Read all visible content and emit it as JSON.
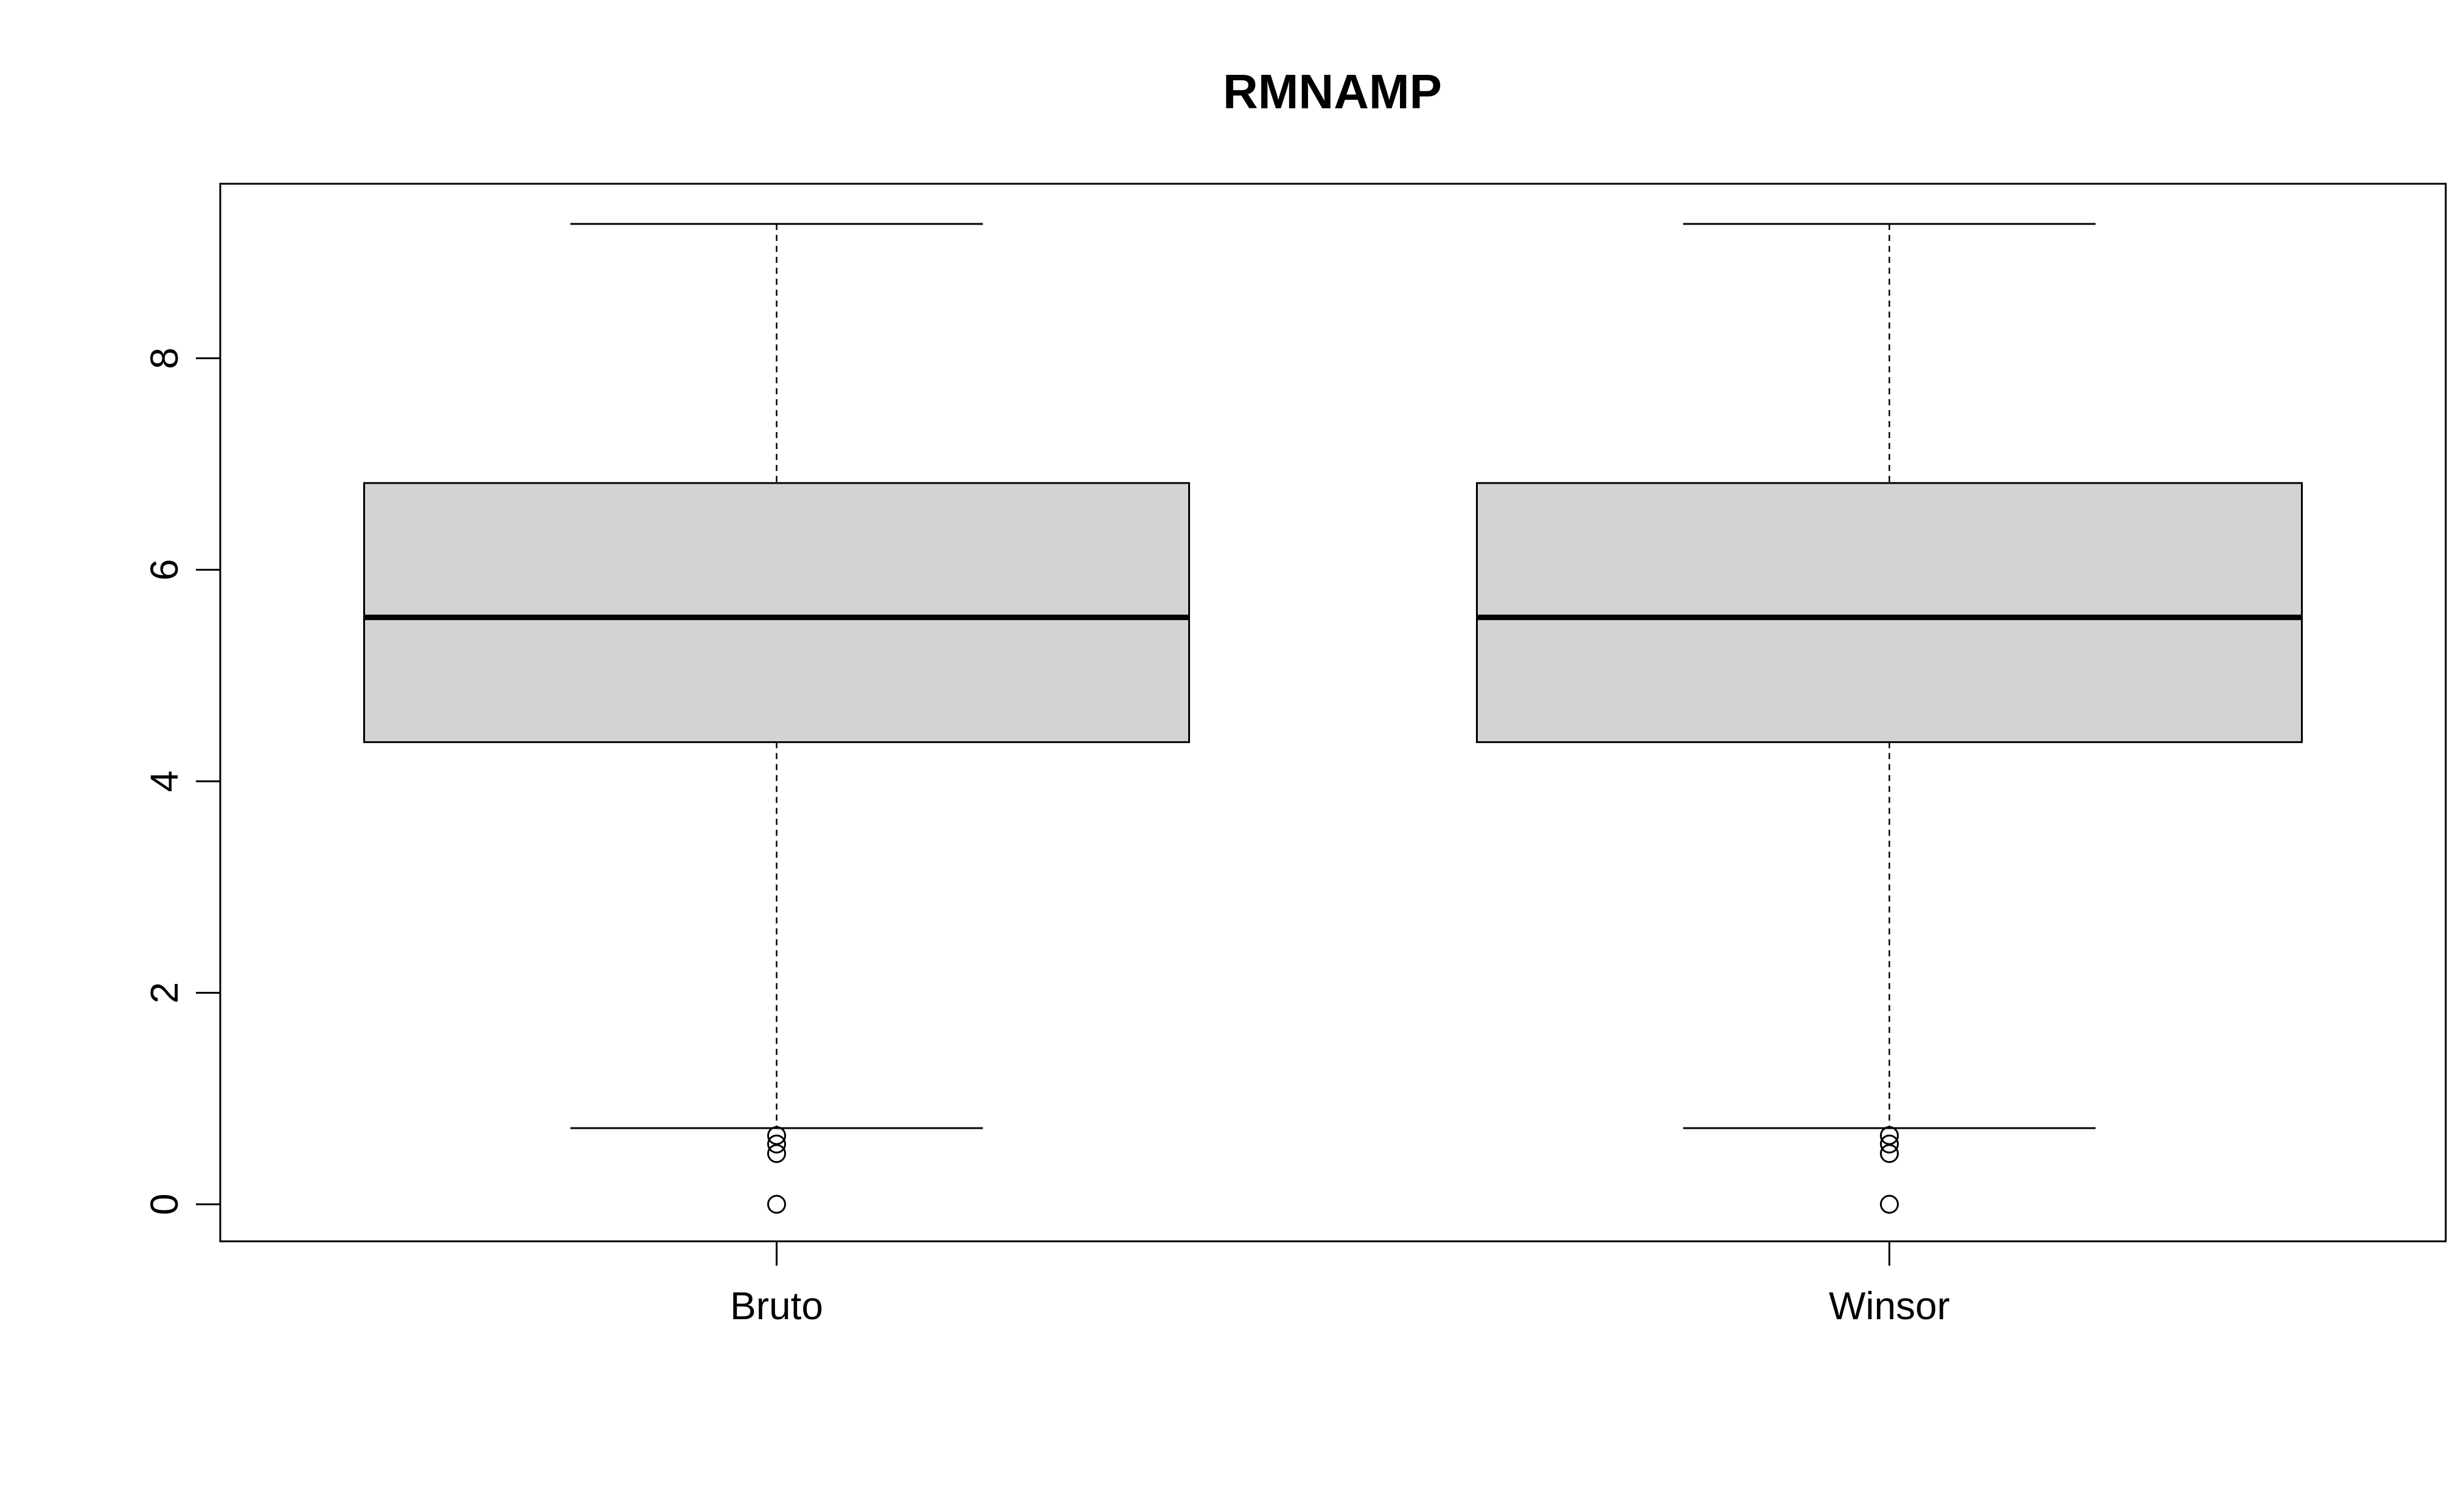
{
  "chart_data": {
    "type": "boxplot",
    "title": "RMNAMP",
    "xlabel": "",
    "ylabel": "",
    "categories": [
      "Bruto",
      "Winsor"
    ],
    "ylim": [
      -0.35,
      9.65
    ],
    "yticks": [
      0,
      2,
      4,
      6,
      8
    ],
    "grid": false,
    "legend": "none",
    "colors": {
      "box_fill": "#d3d3d3",
      "stroke": "#000000",
      "background": "#ffffff"
    },
    "boxes": [
      {
        "category": "Bruto",
        "whisker_low": 0.72,
        "q1": 4.37,
        "median": 5.55,
        "q3": 6.82,
        "whisker_high": 9.27,
        "outliers": [
          0.0,
          0.48,
          0.57,
          0.65
        ]
      },
      {
        "category": "Winsor",
        "whisker_low": 0.72,
        "q1": 4.37,
        "median": 5.55,
        "q3": 6.82,
        "whisker_high": 9.27,
        "outliers": [
          0.0,
          0.48,
          0.57,
          0.65
        ]
      }
    ]
  }
}
